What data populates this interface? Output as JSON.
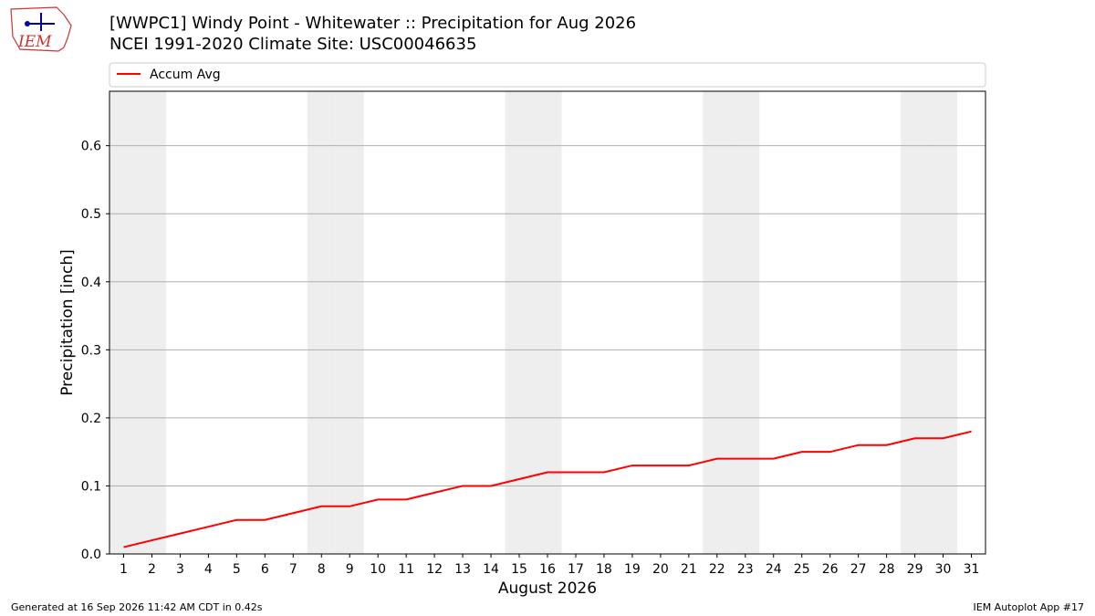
{
  "logo_text": "IEM",
  "footer_left": "Generated at 16 Sep 2026 11:42 AM CDT in 0.42s",
  "footer_right": "IEM Autoplot App #17",
  "chart_data": {
    "type": "line",
    "title": "[WWPC1] Windy Point - Whitewater :: Precipitation for Aug 2026",
    "subtitle": "NCEI 1991-2020 Climate Site: USC00046635",
    "x_label": "August 2026",
    "y_label": "Precipitation [inch]",
    "x": [
      1,
      2,
      3,
      4,
      5,
      6,
      7,
      8,
      9,
      10,
      11,
      12,
      13,
      14,
      15,
      16,
      17,
      18,
      19,
      20,
      21,
      22,
      23,
      24,
      25,
      26,
      27,
      28,
      29,
      30,
      31
    ],
    "series": [
      {
        "name": "Accum Avg",
        "color": "#ff0000",
        "values": [
          0.01,
          0.02,
          0.03,
          0.04,
          0.05,
          0.05,
          0.06,
          0.07,
          0.07,
          0.08,
          0.08,
          0.09,
          0.1,
          0.1,
          0.11,
          0.12,
          0.12,
          0.12,
          0.13,
          0.13,
          0.13,
          0.14,
          0.14,
          0.14,
          0.15,
          0.15,
          0.16,
          0.16,
          0.17,
          0.17,
          0.18
        ]
      }
    ],
    "shaded_days": [
      1,
      2,
      8,
      9,
      15,
      16,
      22,
      23,
      29,
      30
    ],
    "shade_color": "#eeeeee",
    "xlim": [
      0.5,
      31.5
    ],
    "ylim": [
      0,
      0.68
    ],
    "xticks": [
      1,
      2,
      3,
      4,
      5,
      6,
      7,
      8,
      9,
      10,
      11,
      12,
      13,
      14,
      15,
      16,
      17,
      18,
      19,
      20,
      21,
      22,
      23,
      24,
      25,
      26,
      27,
      28,
      29,
      30,
      31
    ],
    "yticks": [
      {
        "value": 0,
        "label": "0.0"
      },
      0.1,
      0.2,
      0.3,
      0.4,
      0.5,
      0.6
    ],
    "grid": true,
    "legend": "top"
  }
}
